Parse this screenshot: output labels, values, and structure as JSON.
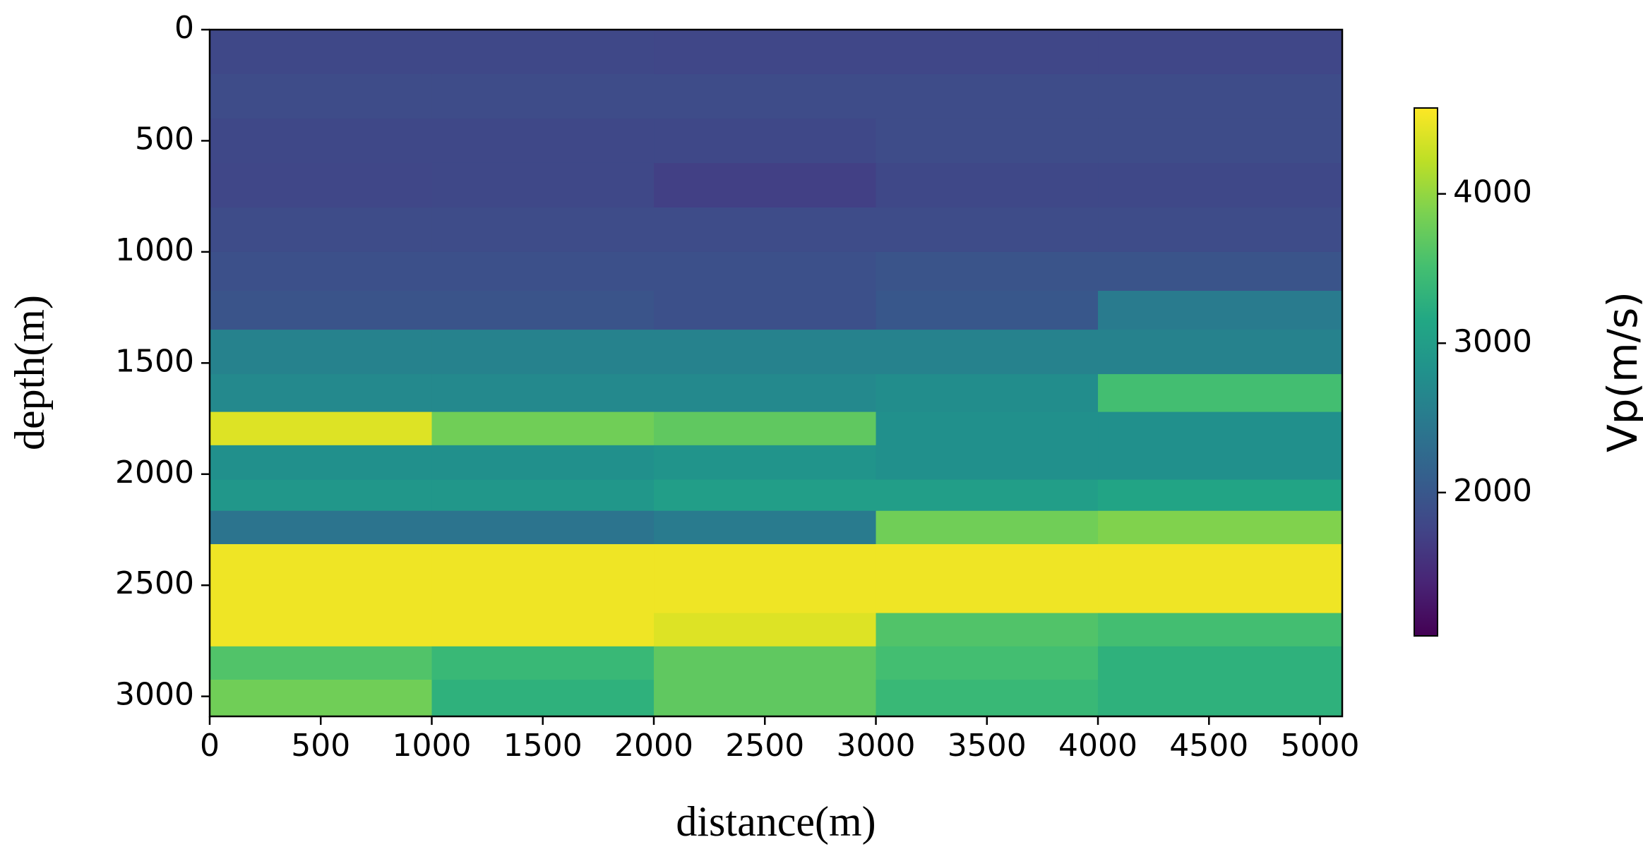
{
  "chart_data": {
    "type": "heatmap",
    "xlabel": "distance(m)",
    "ylabel": "depth(m)",
    "colorbar_label": "Vp(m/s)",
    "colormap": "viridis",
    "x": [
      500,
      1500,
      2500,
      3500,
      4500
    ],
    "y": [
      100,
      300,
      500,
      700,
      900,
      1100,
      1250,
      1450,
      1650,
      1790,
      1950,
      2100,
      2230,
      2400,
      2550,
      2700,
      2850,
      3000
    ],
    "values": [
      [
        1800,
        1800,
        1780,
        1780,
        1780
      ],
      [
        1850,
        1850,
        1850,
        1850,
        1850
      ],
      [
        1800,
        1800,
        1800,
        1850,
        1850
      ],
      [
        1780,
        1800,
        1700,
        1800,
        1800
      ],
      [
        1850,
        1850,
        1850,
        1850,
        1850
      ],
      [
        1900,
        1900,
        1900,
        1950,
        1950
      ],
      [
        1950,
        1950,
        1900,
        2000,
        2500
      ],
      [
        2600,
        2600,
        2600,
        2600,
        2600
      ],
      [
        2700,
        2700,
        2700,
        2750,
        3500
      ],
      [
        4400,
        3800,
        3700,
        2800,
        2800
      ],
      [
        2800,
        2800,
        2850,
        2800,
        2800
      ],
      [
        2900,
        2900,
        3000,
        3000,
        3100
      ],
      [
        2400,
        2400,
        2500,
        3800,
        3900
      ],
      [
        4500,
        4500,
        4500,
        4500,
        4500
      ],
      [
        4500,
        4500,
        4500,
        4500,
        4500
      ],
      [
        4500,
        4500,
        4400,
        3600,
        3500
      ],
      [
        3600,
        3400,
        3700,
        3500,
        3300
      ],
      [
        3800,
        3300,
        3700,
        3400,
        3300
      ]
    ],
    "xlim": [
      0,
      5100
    ],
    "ylim": [
      3090,
      0
    ],
    "xticks": [
      0,
      500,
      1000,
      1500,
      2000,
      2500,
      3000,
      3500,
      4000,
      4500,
      5000
    ],
    "yticks": [
      0,
      500,
      1000,
      1500,
      2000,
      2500,
      3000
    ],
    "clim": [
      1040,
      4575
    ],
    "cticks": [
      2000,
      3000,
      4000
    ]
  }
}
